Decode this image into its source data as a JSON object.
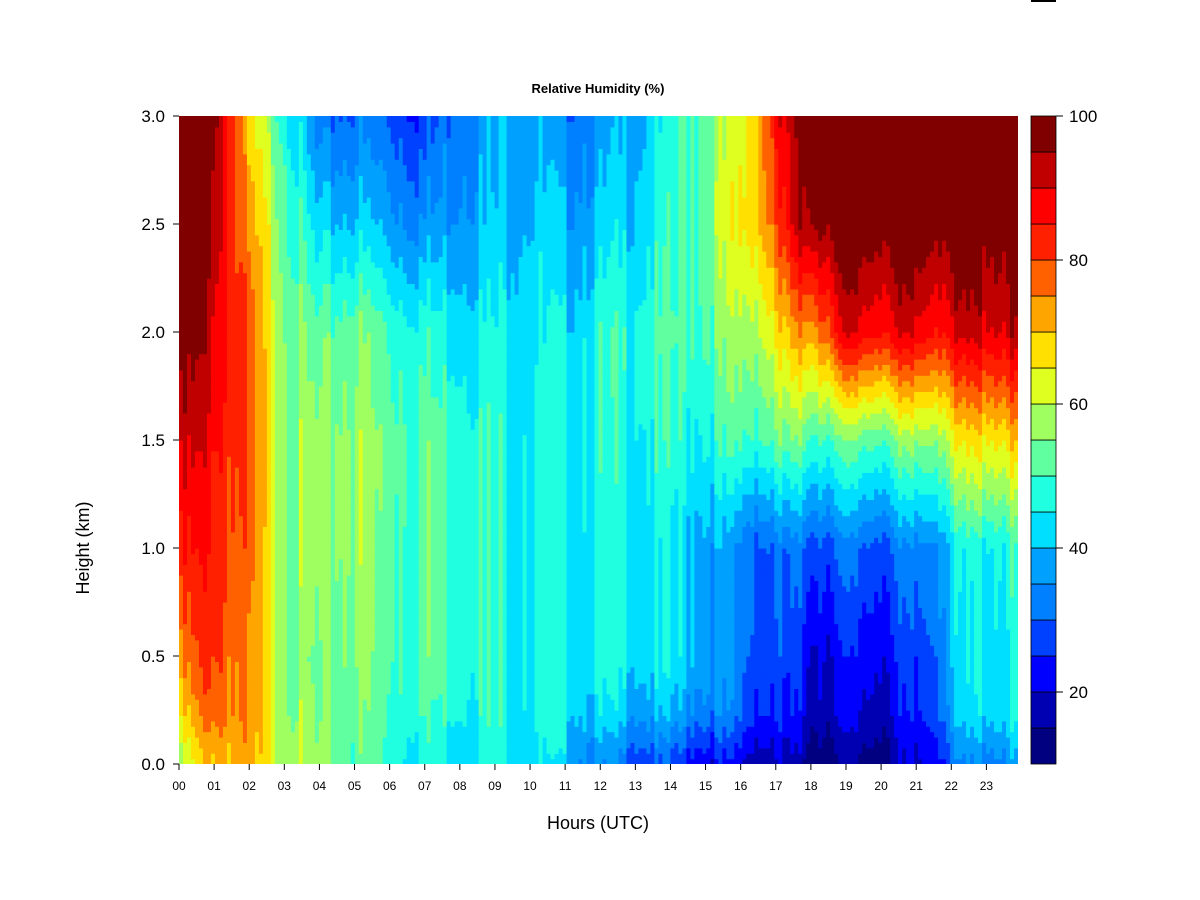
{
  "chart_data": {
    "type": "heatmap",
    "title": "Relative Humidity (%)",
    "xlabel": "Hours (UTC)",
    "ylabel": "Height (km)",
    "x_range": [
      0,
      23.9
    ],
    "y_range": [
      0,
      3.0
    ],
    "x_tick_labels": [
      "00",
      "01",
      "02",
      "03",
      "04",
      "05",
      "06",
      "07",
      "08",
      "09",
      "10",
      "11",
      "12",
      "13",
      "14",
      "15",
      "16",
      "17",
      "18",
      "19",
      "20",
      "21",
      "22",
      "23"
    ],
    "y_tick_labels": [
      "0.0",
      "0.5",
      "1.0",
      "1.5",
      "2.0",
      "2.5",
      "3.0"
    ],
    "y_tick_values": [
      0,
      0.5,
      1.0,
      1.5,
      2.0,
      2.5,
      3.0
    ],
    "colorbar": {
      "range": [
        10,
        100
      ],
      "step": 5,
      "tick_values": [
        20,
        40,
        60,
        80,
        100
      ],
      "tick_labels": [
        "20",
        "40",
        "60",
        "80",
        "100"
      ],
      "colors": [
        "#000080",
        "#0000B3",
        "#0000FF",
        "#0040FF",
        "#0080FF",
        "#00A0FF",
        "#00DFFF",
        "#20FFDF",
        "#60FF9F",
        "#A0FF60",
        "#DFFF20",
        "#FFE000",
        "#FFA500",
        "#FF6000",
        "#FF2000",
        "#FF0000",
        "#C00000",
        "#800000"
      ]
    },
    "height_levels_km": [
      0.0,
      0.25,
      0.5,
      1.0,
      1.5,
      2.0,
      2.5,
      3.0
    ],
    "hours": [
      0,
      1,
      2,
      3,
      4,
      5,
      6,
      7,
      8,
      9,
      10,
      11,
      12,
      13,
      14,
      15,
      16,
      17,
      18,
      19,
      20,
      21,
      22,
      23,
      24
    ],
    "values": [
      [
        55,
        72,
        70,
        60,
        55,
        52,
        48,
        45,
        45,
        45,
        44,
        40,
        33,
        30,
        26,
        23,
        20,
        17,
        14,
        13,
        14,
        18,
        30,
        35,
        35
      ],
      [
        65,
        80,
        72,
        60,
        52,
        55,
        50,
        50,
        48,
        48,
        47,
        45,
        42,
        40,
        38,
        35,
        30,
        25,
        20,
        20,
        20,
        23,
        38,
        45,
        45
      ],
      [
        72,
        83,
        72,
        58,
        52,
        57,
        52,
        52,
        50,
        48,
        47,
        45,
        45,
        45,
        43,
        40,
        32,
        27,
        22,
        22,
        23,
        25,
        40,
        45,
        45
      ],
      [
        82,
        85,
        75,
        58,
        55,
        58,
        52,
        52,
        50,
        48,
        47,
        45,
        45,
        45,
        43,
        40,
        32,
        30,
        30,
        30,
        30,
        32,
        42,
        47,
        47
      ],
      [
        90,
        88,
        78,
        58,
        55,
        58,
        53,
        52,
        50,
        48,
        47,
        46,
        47,
        47,
        47,
        47,
        50,
        52,
        52,
        52,
        53,
        55,
        62,
        68,
        68
      ],
      [
        98,
        92,
        76,
        57,
        50,
        55,
        50,
        48,
        45,
        45,
        45,
        43,
        47,
        48,
        50,
        52,
        57,
        65,
        75,
        88,
        88,
        88,
        88,
        92,
        92
      ],
      [
        100,
        95,
        72,
        55,
        40,
        42,
        38,
        35,
        38,
        40,
        42,
        38,
        40,
        43,
        47,
        55,
        65,
        78,
        98,
        100,
        100,
        100,
        100,
        100,
        100
      ],
      [
        100,
        100,
        65,
        50,
        30,
        32,
        30,
        26,
        35,
        38,
        40,
        33,
        35,
        40,
        45,
        55,
        62,
        85,
        100,
        100,
        100,
        100,
        100,
        100,
        100
      ]
    ]
  }
}
